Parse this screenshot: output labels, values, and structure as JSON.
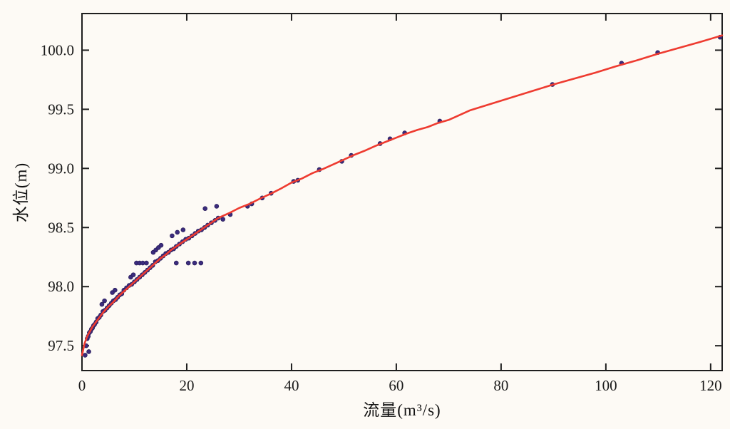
{
  "chart_data": {
    "type": "scatter",
    "title": "",
    "xlabel": "流量(m³/s)",
    "ylabel": "水位(m)",
    "xlim": [
      0,
      122.2
    ],
    "ylim": [
      97.29,
      100.31
    ],
    "grid": false,
    "legend": "none",
    "axis_color": "#1f1f1f",
    "tick_length": 10,
    "x_ticks": [
      {
        "v": 0,
        "label": "0"
      },
      {
        "v": 20,
        "label": "20"
      },
      {
        "v": 40,
        "label": "40"
      },
      {
        "v": 60,
        "label": "60"
      },
      {
        "v": 80,
        "label": "80"
      },
      {
        "v": 100,
        "label": "100"
      },
      {
        "v": 120,
        "label": "120"
      }
    ],
    "y_ticks": [
      {
        "v": 97.5,
        "label": "97.5"
      },
      {
        "v": 98.0,
        "label": "98.0"
      },
      {
        "v": 98.5,
        "label": "98.5"
      },
      {
        "v": 99.0,
        "label": "99.0"
      },
      {
        "v": 99.5,
        "label": "99.5"
      },
      {
        "v": 100.0,
        "label": "100.0"
      }
    ],
    "series": [
      {
        "id": "observations",
        "type": "scatter",
        "color": "#3b2c7e",
        "edge_color": "#2b1f5c",
        "marker_radius": 2.9,
        "points": [
          [
            0.6,
            97.42
          ],
          [
            1.3,
            97.45
          ],
          [
            0.8,
            97.5
          ],
          [
            1.0,
            97.56
          ],
          [
            1.2,
            97.58
          ],
          [
            1.4,
            97.61
          ],
          [
            1.6,
            97.62
          ],
          [
            1.8,
            97.64
          ],
          [
            2.0,
            97.65
          ],
          [
            2.2,
            97.67
          ],
          [
            2.4,
            97.68
          ],
          [
            2.7,
            97.7
          ],
          [
            3.0,
            97.73
          ],
          [
            3.3,
            97.74
          ],
          [
            3.6,
            97.76
          ],
          [
            4.0,
            97.79
          ],
          [
            4.4,
            97.8
          ],
          [
            4.8,
            97.82
          ],
          [
            5.2,
            97.84
          ],
          [
            5.6,
            97.86
          ],
          [
            6.0,
            97.88
          ],
          [
            6.4,
            97.89
          ],
          [
            6.8,
            97.91
          ],
          [
            7.2,
            97.93
          ],
          [
            7.6,
            97.94
          ],
          [
            8.0,
            97.97
          ],
          [
            8.5,
            97.99
          ],
          [
            9.0,
            98.01
          ],
          [
            9.5,
            98.02
          ],
          [
            10.0,
            98.04
          ],
          [
            10.5,
            98.06
          ],
          [
            11.0,
            98.08
          ],
          [
            11.5,
            98.1
          ],
          [
            12.0,
            98.12
          ],
          [
            12.5,
            98.14
          ],
          [
            13.0,
            98.16
          ],
          [
            13.5,
            98.18
          ],
          [
            14.0,
            98.21
          ],
          [
            14.5,
            98.22
          ],
          [
            15.0,
            98.24
          ],
          [
            15.5,
            98.26
          ],
          [
            16.0,
            98.28
          ],
          [
            16.5,
            98.29
          ],
          [
            17.0,
            98.31
          ],
          [
            17.5,
            98.32
          ],
          [
            18.0,
            98.34
          ],
          [
            18.6,
            98.36
          ],
          [
            19.2,
            98.38
          ],
          [
            19.8,
            98.4
          ],
          [
            20.4,
            98.41
          ],
          [
            21.0,
            98.43
          ],
          [
            21.6,
            98.45
          ],
          [
            22.2,
            98.47
          ],
          [
            22.8,
            98.48
          ],
          [
            23.4,
            98.5
          ],
          [
            24.0,
            98.52
          ],
          [
            24.7,
            98.54
          ],
          [
            25.4,
            98.56
          ],
          [
            26.0,
            98.58
          ],
          [
            3.8,
            97.85
          ],
          [
            4.3,
            97.88
          ],
          [
            5.8,
            97.95
          ],
          [
            6.3,
            97.97
          ],
          [
            9.3,
            98.08
          ],
          [
            9.8,
            98.1
          ],
          [
            13.6,
            98.29
          ],
          [
            14.1,
            98.31
          ],
          [
            14.6,
            98.33
          ],
          [
            15.1,
            98.35
          ],
          [
            17.2,
            98.43
          ],
          [
            18.2,
            98.46
          ],
          [
            19.3,
            98.48
          ],
          [
            10.4,
            98.2
          ],
          [
            11.0,
            98.2
          ],
          [
            11.6,
            98.2
          ],
          [
            12.3,
            98.2
          ],
          [
            18.0,
            98.2
          ],
          [
            20.3,
            98.2
          ],
          [
            21.5,
            98.2
          ],
          [
            22.7,
            98.2
          ],
          [
            23.5,
            98.66
          ],
          [
            25.7,
            98.68
          ],
          [
            26.9,
            98.57
          ],
          [
            28.3,
            98.61
          ],
          [
            31.6,
            98.68
          ],
          [
            32.4,
            98.7
          ],
          [
            34.4,
            98.75
          ],
          [
            36.1,
            98.79
          ],
          [
            40.4,
            98.89
          ],
          [
            41.2,
            98.9
          ],
          [
            45.3,
            98.99
          ],
          [
            49.6,
            99.06
          ],
          [
            51.4,
            99.11
          ],
          [
            56.9,
            99.21
          ],
          [
            58.8,
            99.25
          ],
          [
            61.6,
            99.3
          ],
          [
            68.3,
            99.4
          ],
          [
            89.8,
            99.71
          ],
          [
            103.0,
            99.89
          ],
          [
            109.9,
            99.98
          ],
          [
            121.8,
            100.11
          ]
        ]
      },
      {
        "id": "rating-curve",
        "type": "line",
        "color": "#ee3b30",
        "line_width": 2.6,
        "points": [
          [
            0,
            97.42
          ],
          [
            0.5,
            97.52
          ],
          [
            1,
            97.58
          ],
          [
            1.5,
            97.62
          ],
          [
            2,
            97.66
          ],
          [
            2.5,
            97.69
          ],
          [
            3,
            97.72
          ],
          [
            4,
            97.78
          ],
          [
            5,
            97.83
          ],
          [
            6,
            97.87
          ],
          [
            7,
            97.92
          ],
          [
            8,
            97.96
          ],
          [
            9,
            98.0
          ],
          [
            10,
            98.04
          ],
          [
            11,
            98.08
          ],
          [
            12,
            98.12
          ],
          [
            13,
            98.16
          ],
          [
            14,
            98.2
          ],
          [
            15,
            98.24
          ],
          [
            16,
            98.27
          ],
          [
            17,
            98.31
          ],
          [
            18,
            98.34
          ],
          [
            19,
            98.37
          ],
          [
            20,
            98.4
          ],
          [
            21,
            98.43
          ],
          [
            22,
            98.46
          ],
          [
            23,
            98.49
          ],
          [
            24,
            98.52
          ],
          [
            25,
            98.55
          ],
          [
            26,
            98.58
          ],
          [
            28,
            98.62
          ],
          [
            30,
            98.665
          ],
          [
            32,
            98.7
          ],
          [
            34,
            98.745
          ],
          [
            36,
            98.785
          ],
          [
            38,
            98.83
          ],
          [
            40,
            98.88
          ],
          [
            42,
            98.915
          ],
          [
            44,
            98.96
          ],
          [
            46,
            98.995
          ],
          [
            48,
            99.035
          ],
          [
            50,
            99.075
          ],
          [
            52,
            99.115
          ],
          [
            54,
            99.15
          ],
          [
            56,
            99.19
          ],
          [
            58,
            99.225
          ],
          [
            60,
            99.26
          ],
          [
            62,
            99.295
          ],
          [
            64,
            99.325
          ],
          [
            66,
            99.35
          ],
          [
            68,
            99.385
          ],
          [
            70,
            99.41
          ],
          [
            74,
            99.49
          ],
          [
            78,
            99.545
          ],
          [
            82,
            99.6
          ],
          [
            86,
            99.655
          ],
          [
            90,
            99.71
          ],
          [
            94,
            99.76
          ],
          [
            98,
            99.81
          ],
          [
            102,
            99.865
          ],
          [
            106,
            99.915
          ],
          [
            110,
            99.97
          ],
          [
            114,
            100.02
          ],
          [
            118,
            100.07
          ],
          [
            122.2,
            100.125
          ]
        ]
      }
    ]
  }
}
